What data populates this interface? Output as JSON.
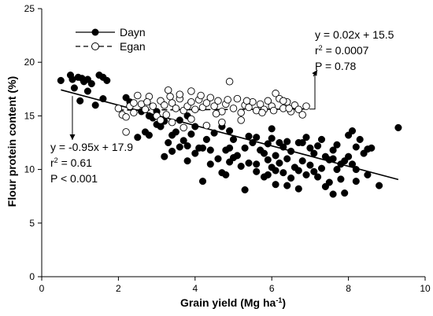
{
  "chart_data": {
    "type": "scatter",
    "xlabel": "Grain yield (Mg ha",
    "xlabel_sup": "-1",
    "xlabel_end": ")",
    "ylabel": "Flour protein content (%)",
    "xlim": [
      0,
      10
    ],
    "ylim": [
      0,
      25
    ],
    "xticks": [
      "0",
      "2",
      "4",
      "6",
      "8",
      "10"
    ],
    "yticks": [
      "0",
      "5",
      "10",
      "15",
      "20",
      "25"
    ],
    "grid": false,
    "legend_placement": "top-left",
    "series": [
      {
        "name": "Dayn",
        "marker": "filled-circle",
        "color": "#000000",
        "points": [
          [
            0.5,
            18.3
          ],
          [
            0.75,
            18.8
          ],
          [
            0.8,
            18.4
          ],
          [
            0.95,
            18.6
          ],
          [
            1.05,
            18.5
          ],
          [
            1.1,
            18.2
          ],
          [
            1.2,
            18.4
          ],
          [
            1.3,
            18.0
          ],
          [
            1.5,
            18.8
          ],
          [
            1.6,
            18.6
          ],
          [
            1.7,
            18.3
          ],
          [
            1.0,
            16.4
          ],
          [
            1.2,
            17.3
          ],
          [
            1.4,
            16.0
          ],
          [
            1.6,
            16.6
          ],
          [
            0.85,
            17.6
          ],
          [
            2.2,
            16.7
          ],
          [
            2.3,
            16.3
          ],
          [
            2.6,
            15.4
          ],
          [
            2.8,
            15.0
          ],
          [
            3.0,
            15.4
          ],
          [
            3.2,
            14.5
          ],
          [
            2.9,
            14.8
          ],
          [
            3.5,
            15.7
          ],
          [
            3.6,
            14.6
          ],
          [
            3.8,
            15.0
          ],
          [
            4.0,
            14.0
          ],
          [
            2.5,
            13.0
          ],
          [
            2.7,
            13.5
          ],
          [
            2.8,
            13.2
          ],
          [
            3.0,
            14.2
          ],
          [
            3.1,
            14.0
          ],
          [
            3.3,
            12.5
          ],
          [
            3.4,
            13.2
          ],
          [
            3.5,
            13.5
          ],
          [
            3.7,
            12.7
          ],
          [
            3.9,
            13.3
          ],
          [
            4.1,
            12.0
          ],
          [
            4.3,
            12.8
          ],
          [
            4.5,
            13.4
          ],
          [
            4.7,
            14.0
          ],
          [
            4.9,
            13.6
          ],
          [
            5.0,
            12.8
          ],
          [
            5.1,
            11.3
          ],
          [
            5.3,
            12.0
          ],
          [
            5.4,
            13.1
          ],
          [
            5.5,
            12.5
          ],
          [
            3.2,
            11.2
          ],
          [
            3.4,
            11.7
          ],
          [
            3.6,
            12.1
          ],
          [
            3.8,
            10.8
          ],
          [
            4.0,
            11.5
          ],
          [
            4.2,
            12.0
          ],
          [
            4.4,
            10.5
          ],
          [
            4.6,
            11.0
          ],
          [
            4.8,
            9.5
          ],
          [
            4.9,
            10.7
          ],
          [
            5.0,
            11.1
          ],
          [
            5.2,
            10.3
          ],
          [
            5.4,
            10.6
          ],
          [
            5.6,
            9.8
          ],
          [
            5.8,
            11.5
          ],
          [
            3.8,
            12.2
          ],
          [
            4.4,
            11.8
          ],
          [
            4.8,
            11.8
          ],
          [
            4.7,
            9.7
          ],
          [
            4.2,
            8.9
          ],
          [
            5.3,
            8.1
          ],
          [
            5.9,
            9.5
          ],
          [
            5.8,
            9.3
          ],
          [
            6.1,
            8.6
          ],
          [
            6.4,
            8.5
          ],
          [
            6.7,
            8.2
          ],
          [
            6.3,
            9.7
          ],
          [
            6.0,
            10.2
          ],
          [
            5.7,
            11.8
          ],
          [
            5.9,
            12.4
          ],
          [
            6.0,
            12.9
          ],
          [
            6.0,
            13.8
          ],
          [
            6.2,
            12.5
          ],
          [
            6.3,
            12.1
          ],
          [
            6.5,
            11.7
          ],
          [
            6.7,
            12.5
          ],
          [
            6.9,
            13.0
          ],
          [
            7.0,
            12.0
          ],
          [
            7.2,
            12.2
          ],
          [
            7.4,
            11.2
          ],
          [
            7.6,
            11.8
          ],
          [
            7.7,
            12.3
          ],
          [
            5.9,
            10.9
          ],
          [
            6.1,
            11.3
          ],
          [
            6.2,
            10.6
          ],
          [
            6.4,
            11.0
          ],
          [
            6.6,
            10.2
          ],
          [
            6.8,
            10.8
          ],
          [
            7.0,
            10.4
          ],
          [
            7.1,
            9.8
          ],
          [
            7.3,
            10.1
          ],
          [
            7.5,
            10.9
          ],
          [
            7.7,
            10.0
          ],
          [
            6.1,
            9.9
          ],
          [
            6.5,
            9.2
          ],
          [
            6.7,
            9.9
          ],
          [
            6.9,
            9.5
          ],
          [
            7.2,
            9.3
          ],
          [
            7.5,
            8.8
          ],
          [
            7.8,
            9.1
          ],
          [
            7.4,
            8.4
          ],
          [
            7.9,
            7.8
          ],
          [
            7.6,
            7.7
          ],
          [
            8.1,
            10.5
          ],
          [
            8.2,
            10.0
          ],
          [
            7.6,
            11.0
          ],
          [
            7.8,
            10.5
          ],
          [
            7.9,
            10.8
          ],
          [
            8.0,
            11.2
          ],
          [
            8.2,
            12.1
          ],
          [
            8.4,
            11.5
          ],
          [
            8.0,
            13.2
          ],
          [
            8.5,
            11.9
          ],
          [
            8.1,
            13.6
          ],
          [
            8.3,
            12.8
          ],
          [
            8.5,
            9.5
          ],
          [
            8.2,
            8.9
          ],
          [
            8.8,
            8.5
          ],
          [
            9.3,
            13.9
          ],
          [
            8.6,
            12.0
          ],
          [
            6.8,
            12.5
          ],
          [
            7.1,
            11.5
          ],
          [
            7.3,
            12.8
          ],
          [
            6.4,
            12.6
          ],
          [
            5.6,
            13.0
          ],
          [
            4.9,
            12.0
          ],
          [
            5.6,
            10.5
          ]
        ]
      },
      {
        "name": "Egan",
        "marker": "open-circle",
        "color": "#000000",
        "points": [
          [
            2.0,
            15.7
          ],
          [
            2.1,
            15.1
          ],
          [
            2.2,
            14.9
          ],
          [
            2.3,
            15.9
          ],
          [
            2.4,
            15.3
          ],
          [
            2.5,
            16.9
          ],
          [
            2.6,
            16.1
          ],
          [
            2.7,
            15.6
          ],
          [
            2.8,
            16.8
          ],
          [
            2.9,
            15.9
          ],
          [
            3.0,
            15.0
          ],
          [
            3.1,
            16.4
          ],
          [
            3.2,
            16.0
          ],
          [
            3.3,
            17.4
          ],
          [
            3.35,
            16.8
          ],
          [
            3.4,
            16.2
          ],
          [
            3.5,
            15.7
          ],
          [
            3.6,
            16.6
          ],
          [
            3.7,
            15.5
          ],
          [
            3.8,
            15.9
          ],
          [
            3.9,
            16.3
          ],
          [
            4.0,
            15.6
          ],
          [
            4.1,
            16.5
          ],
          [
            4.2,
            15.8
          ],
          [
            4.3,
            16.2
          ],
          [
            4.4,
            16.7
          ],
          [
            4.5,
            15.9
          ],
          [
            4.6,
            16.4
          ],
          [
            4.7,
            15.4
          ],
          [
            4.8,
            16.1
          ],
          [
            4.9,
            18.2
          ],
          [
            5.0,
            15.7
          ],
          [
            5.1,
            16.6
          ],
          [
            5.2,
            15.3
          ],
          [
            5.3,
            16.0
          ],
          [
            5.4,
            15.8
          ],
          [
            5.5,
            16.3
          ],
          [
            5.6,
            15.5
          ],
          [
            5.7,
            16.1
          ],
          [
            5.8,
            15.6
          ],
          [
            5.9,
            16.4
          ],
          [
            6.0,
            15.9
          ],
          [
            6.1,
            17.1
          ],
          [
            6.2,
            16.6
          ],
          [
            6.3,
            15.7
          ],
          [
            6.4,
            16.3
          ],
          [
            6.5,
            15.4
          ],
          [
            6.6,
            16.0
          ],
          [
            6.7,
            15.6
          ],
          [
            6.8,
            15.1
          ],
          [
            6.9,
            15.9
          ],
          [
            6.3,
            16.4
          ],
          [
            3.4,
            14.4
          ],
          [
            3.7,
            13.9
          ],
          [
            3.9,
            14.7
          ],
          [
            4.3,
            14.1
          ],
          [
            4.7,
            14.4
          ],
          [
            5.2,
            14.6
          ],
          [
            3.1,
            14.6
          ],
          [
            2.2,
            13.5
          ],
          [
            3.25,
            15.1
          ],
          [
            4.55,
            15.2
          ],
          [
            2.4,
            16.2
          ],
          [
            3.6,
            17.0
          ],
          [
            4.15,
            16.9
          ],
          [
            5.35,
            16.4
          ],
          [
            5.75,
            15.3
          ],
          [
            6.05,
            15.5
          ],
          [
            6.45,
            15.7
          ],
          [
            2.75,
            16.3
          ],
          [
            3.9,
            17.3
          ],
          [
            4.85,
            16.5
          ]
        ]
      }
    ],
    "regressions": [
      {
        "series": "Dayn",
        "slope": -0.95,
        "intercept": 17.9,
        "x_range": [
          0.5,
          9.3
        ],
        "line_style": "solid",
        "equation": "y = -0.95x + 17.9",
        "r2_label": "r",
        "r2_sup": "2",
        "r2_value": " = 0.61",
        "p_text": "P < 0.001"
      },
      {
        "series": "Egan",
        "slope": 0.02,
        "intercept": 15.5,
        "x_range": [
          2.0,
          6.9
        ],
        "line_style": "dashed",
        "equation": "y = 0.02x + 15.5",
        "r2_label": "r",
        "r2_sup": "2",
        "r2_value": " = 0.0007",
        "p_text": "P = 0.78"
      }
    ]
  }
}
